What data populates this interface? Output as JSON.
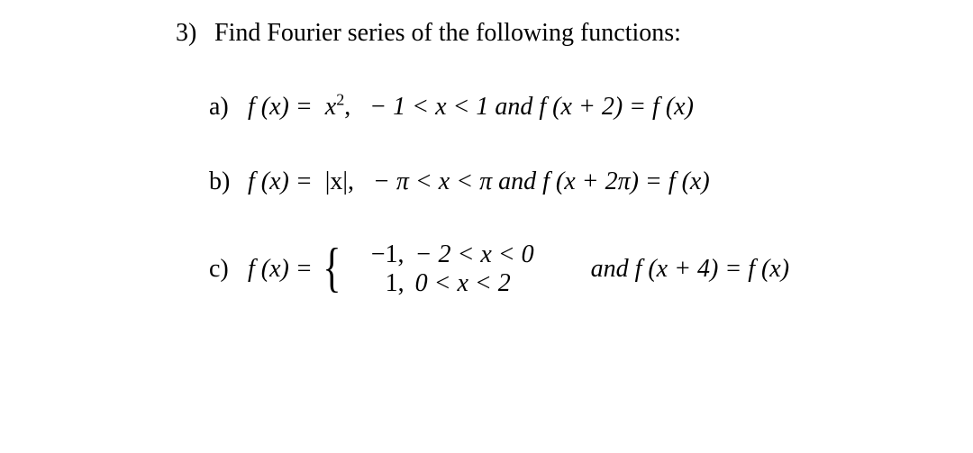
{
  "colors": {
    "text": "#000000",
    "background": "#ffffff"
  },
  "fonts": {
    "family": "Times New Roman",
    "size_pt": 21
  },
  "question": {
    "number": "3)",
    "prompt": "Find Fourier series of the following functions:"
  },
  "items": [
    {
      "label": "a)",
      "fn_lhs": "f (x) = ",
      "fn_rhs_base": "x",
      "fn_rhs_exp": "2",
      "comma": ",",
      "domain": "− 1 < x < 1",
      "and": "and",
      "period": "f (x + 2) = f (x)"
    },
    {
      "label": "b)",
      "fn_lhs": "f (x) = ",
      "fn_rhs": "|x|",
      "comma": ",",
      "domain": "− π < x < π",
      "and": "and",
      "period": "f (x + 2π) = f (x)"
    },
    {
      "label": "c)",
      "fn_lhs": "f (x) = ",
      "pieces": [
        {
          "value": "−1,",
          "cond": "− 2 < x < 0"
        },
        {
          "value": "1,",
          "cond": "0 < x < 2"
        }
      ],
      "and": "and",
      "period": "f (x + 4) = f (x)"
    }
  ]
}
